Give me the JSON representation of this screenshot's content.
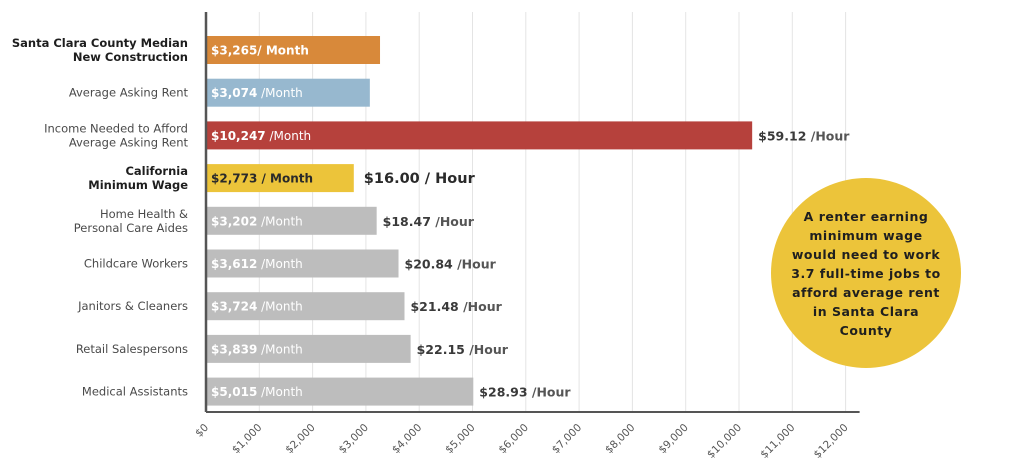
{
  "chart_data": {
    "type": "bar",
    "orientation": "horizontal",
    "categories": [
      "Santa Clara County Median New Construction",
      "Average Asking Rent",
      "Income Needed to Afford Average Asking Rent",
      "California Minimum Wage",
      "Home Health & Personal Care Aides",
      "Childcare Workers",
      "Janitors & Cleaners",
      "Retail Salespersons",
      "Medical Assistants"
    ],
    "values": [
      3265,
      3074,
      10247,
      2773,
      3202,
      3612,
      3724,
      3839,
      5015
    ],
    "xlim": [
      0,
      12000
    ],
    "x_ticks": [
      "$0",
      "$1,000",
      "$2,000",
      "$3,000",
      "$4,000",
      "$5,000",
      "$6,000",
      "$7,000",
      "$8,000",
      "$9,000",
      "$10,000",
      "$11,000",
      "$12,000"
    ],
    "grid": true,
    "bars": [
      {
        "label_lines": [
          "Santa Clara County Median",
          "New Construction"
        ],
        "label_bold": true,
        "value": 3265,
        "value_text": "$3,265/ Month",
        "unit_text": "",
        "color": "#d8893a",
        "label_color": "#ffffff",
        "bar_text_bold": true,
        "outside_value": "",
        "outside_unit": "",
        "outside_big": false
      },
      {
        "label_lines": [
          "Average Asking Rent"
        ],
        "label_bold": false,
        "value": 3074,
        "value_text": "$3,074",
        "unit_text": " /Month",
        "color": "#97b8cf",
        "label_color": "#ffffff",
        "bar_text_bold": false,
        "outside_value": "",
        "outside_unit": "",
        "outside_big": false
      },
      {
        "label_lines": [
          "Income Needed to Afford",
          "Average Asking Rent"
        ],
        "label_bold": false,
        "value": 10247,
        "value_text": "$10,247",
        "unit_text": " /Month",
        "color": "#b6413c",
        "label_color": "#ffffff",
        "bar_text_bold": false,
        "outside_value": "$59.12",
        "outside_unit": " /Hour",
        "outside_big": false
      },
      {
        "label_lines": [
          "California",
          "Minimum Wage"
        ],
        "label_bold": true,
        "value": 2773,
        "value_text": "$2,773 / Month",
        "unit_text": "",
        "color": "#ecc43a",
        "label_color": "#2a2a2a",
        "bar_text_bold": true,
        "outside_value": "$16.00 / Hour",
        "outside_unit": "",
        "outside_big": true
      },
      {
        "label_lines": [
          "Home Health &",
          "Personal Care Aides"
        ],
        "label_bold": false,
        "value": 3202,
        "value_text": "$3,202",
        "unit_text": " /Month",
        "color": "#bdbdbd",
        "label_color": "#ffffff",
        "bar_text_bold": false,
        "outside_value": "$18.47",
        "outside_unit": " /Hour",
        "outside_big": false
      },
      {
        "label_lines": [
          "Childcare Workers"
        ],
        "label_bold": false,
        "value": 3612,
        "value_text": "$3,612",
        "unit_text": " /Month",
        "color": "#bdbdbd",
        "label_color": "#ffffff",
        "bar_text_bold": false,
        "outside_value": "$20.84",
        "outside_unit": " /Hour",
        "outside_big": false
      },
      {
        "label_lines": [
          "Janitors & Cleaners"
        ],
        "label_bold": false,
        "value": 3724,
        "value_text": "$3,724",
        "unit_text": " /Month",
        "color": "#bdbdbd",
        "label_color": "#ffffff",
        "bar_text_bold": false,
        "outside_value": "$21.48",
        "outside_unit": " /Hour",
        "outside_big": false
      },
      {
        "label_lines": [
          "Retail Salespersons"
        ],
        "label_bold": false,
        "value": 3839,
        "value_text": "$3,839",
        "unit_text": " /Month",
        "color": "#bdbdbd",
        "label_color": "#ffffff",
        "bar_text_bold": false,
        "outside_value": "$22.15",
        "outside_unit": " /Hour",
        "outside_big": false
      },
      {
        "label_lines": [
          "Medical Assistants"
        ],
        "label_bold": false,
        "value": 5015,
        "value_text": "$5,015",
        "unit_text": " /Month",
        "color": "#bdbdbd",
        "label_color": "#ffffff",
        "bar_text_bold": false,
        "outside_value": "$28.93",
        "outside_unit": " /Hour",
        "outside_big": false
      }
    ],
    "axis_color": "#555555",
    "grid_color": "#e4e4e4"
  },
  "callout": {
    "text": "A renter earning minimum wage would need to work 3.7 full-time jobs to afford average rent in Santa Clara County",
    "color": "#ecc43a"
  }
}
